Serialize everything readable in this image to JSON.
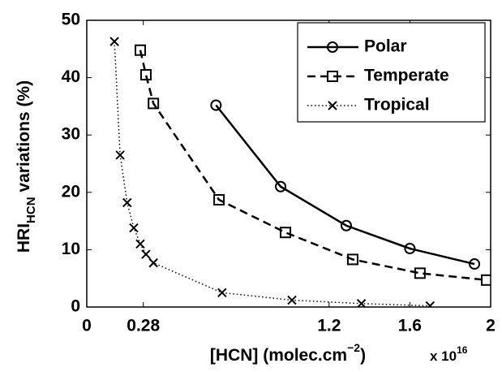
{
  "chart_data": {
    "type": "line",
    "x_label_parts": [
      "[HCN] (molec.cm",
      "−2",
      ")"
    ],
    "x_multiplier_parts": [
      "x 10",
      "16"
    ],
    "y_label_parts": [
      "HRI",
      "HCN",
      " variations (%)"
    ],
    "xlim": [
      0,
      2
    ],
    "xticks": [
      0,
      0.28,
      1.2,
      1.6,
      2
    ],
    "ylim": [
      0,
      50
    ],
    "yticks": [
      0,
      10,
      20,
      30,
      40,
      50
    ],
    "legend": "upper right",
    "series": [
      {
        "name": "Polar",
        "color": "#000000",
        "dash": "solid",
        "marker": "circle",
        "x": [
          0.64,
          0.96,
          1.285,
          1.6,
          1.92
        ],
        "values": [
          35.2,
          21,
          14.2,
          10.2,
          7.5
        ]
      },
      {
        "name": "Temperate",
        "color": "#000000",
        "dash": "dashed",
        "marker": "square",
        "x": [
          0.265,
          0.293,
          0.33,
          0.655,
          0.984,
          1.317,
          1.65,
          1.98
        ],
        "values": [
          44.8,
          40.5,
          35.5,
          18.7,
          13,
          8.3,
          5.9,
          4.7
        ]
      },
      {
        "name": "Tropical",
        "color": "#000000",
        "dash": "dotted",
        "marker": "x",
        "x": [
          0.137,
          0.165,
          0.2,
          0.233,
          0.265,
          0.293,
          0.33,
          0.67,
          1.016,
          1.36,
          1.7
        ],
        "values": [
          46.3,
          26.5,
          18.2,
          13.8,
          11,
          9.2,
          7.7,
          2.5,
          1.2,
          0.6,
          0.2
        ]
      }
    ]
  }
}
